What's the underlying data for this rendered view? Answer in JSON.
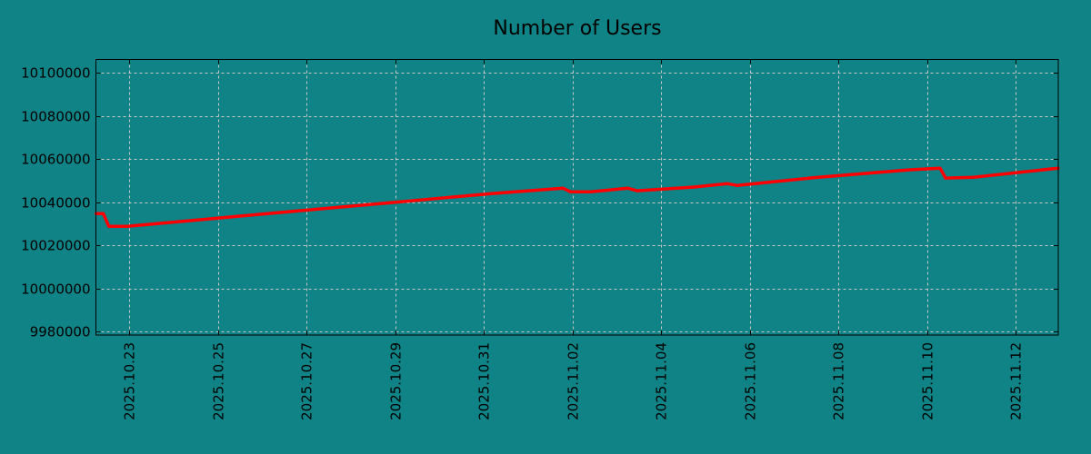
{
  "chart_data": {
    "type": "line",
    "title": "Number of Users",
    "xlabel": "",
    "ylabel": "",
    "xlim": [
      "2025-10-22T06:00",
      "2025-11-12T23:00"
    ],
    "ylim": [
      9978300,
      10106300
    ],
    "grid": true,
    "line_color": "#ff0000",
    "background_color": "#108386",
    "x_ticks": [
      "2025.10.23",
      "2025.10.25",
      "2025.10.27",
      "2025.10.29",
      "2025.10.31",
      "2025.11.02",
      "2025.11.04",
      "2025.11.06",
      "2025.11.08",
      "2025.11.10",
      "2025.11.12"
    ],
    "y_ticks": [
      9980000,
      10000000,
      10020000,
      10040000,
      10060000,
      10080000,
      10100000
    ],
    "series": [
      {
        "name": "Number of Users",
        "x": [
          "2025-10-22T06:00",
          "2025-10-22T10:00",
          "2025-10-22T13:00",
          "2025-10-22T23:00",
          "2025-10-25T00:00",
          "2025-10-27T01:00",
          "2025-10-29T03:00",
          "2025-10-31T04:00",
          "2025-11-01T19:00",
          "2025-11-01T23:00",
          "2025-11-02T10:00",
          "2025-11-03T06:00",
          "2025-11-03T11:00",
          "2025-11-04T16:00",
          "2025-11-05T12:00",
          "2025-11-05T17:00",
          "2025-11-07T13:00",
          "2025-11-09T14:00",
          "2025-11-10T07:00",
          "2025-11-10T10:00",
          "2025-11-11T01:00",
          "2025-11-12T23:00"
        ],
        "y": [
          10034700,
          10034700,
          10028800,
          10028800,
          10032600,
          10036400,
          10040200,
          10044000,
          10046500,
          10044800,
          10044800,
          10046500,
          10045300,
          10046900,
          10048600,
          10047800,
          10051600,
          10055000,
          10055800,
          10051200,
          10051600,
          10055800
        ]
      }
    ]
  }
}
